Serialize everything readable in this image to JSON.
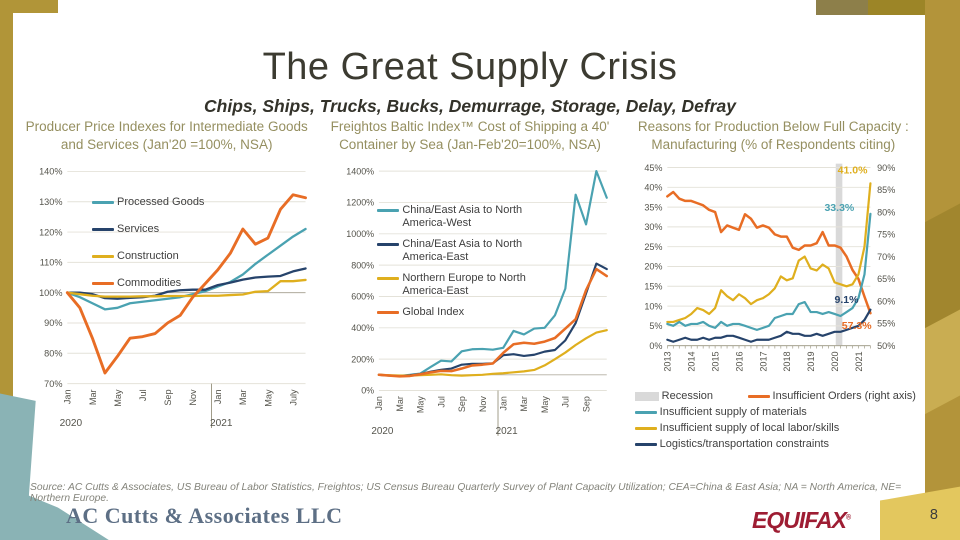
{
  "slide": {
    "title": "The Great Supply Crisis",
    "subtitle": "Chips, Ships, Trucks, Bucks, Demurrage, Storage, Delay, Defray",
    "page_number": "8",
    "source": "Source: AC Cutts & Associates, US Bureau of Labor Statistics, Freightos; US Census Bureau Quarterly Survey of Plant Capacity Utilization; CEA=China & East Asia; NA = North America, NE= Northern Europe.",
    "footer_left_logo": "AC Cutts & Associates LLC",
    "footer_right_logo": "EQUIFAX",
    "footer_right_mark": "®"
  },
  "colors": {
    "teal": "#4aa2b1",
    "navy": "#26436b",
    "gold": "#dfaf1e",
    "orange": "#e86d25",
    "recession": "#d9d9d9",
    "frame_gold": "#b19538",
    "equifax_red": "#9e1d33",
    "chart_title": "#958f60"
  },
  "chart_data": [
    {
      "type": "line",
      "title": "Producer Price Indexes for Intermediate Goods and Services (Jan'20 =100%, NSA)",
      "ylim": [
        70,
        140
      ],
      "ytick_step": 10,
      "baseline": 100,
      "x_ticks": [
        {
          "pos": 0,
          "label": "Jan"
        },
        {
          "pos": 2,
          "label": "Mar"
        },
        {
          "pos": 4,
          "label": "May"
        },
        {
          "pos": 6,
          "label": "Jul"
        },
        {
          "pos": 8,
          "label": "Sep"
        },
        {
          "pos": 10,
          "label": "Nov"
        },
        {
          "pos": 12,
          "label": "Jan"
        },
        {
          "pos": 14,
          "label": "Mar"
        },
        {
          "pos": 16,
          "label": "May"
        },
        {
          "pos": 18,
          "label": "July"
        }
      ],
      "year_labels": [
        {
          "label": "2020",
          "pos": 0
        },
        {
          "label": "2021",
          "pos": 12
        }
      ],
      "year_separator_pos": 11.5,
      "series": [
        {
          "name": "Processed Goods",
          "color": "teal",
          "width": 2.4,
          "values": [
            100,
            98.5,
            96.5,
            94.5,
            95,
            96.5,
            97,
            97.5,
            98,
            98.5,
            99.5,
            100.5,
            102,
            103.5,
            106,
            109.5,
            112.5,
            115.5,
            118.5,
            121
          ]
        },
        {
          "name": "Services",
          "color": "navy",
          "width": 2.4,
          "values": [
            100,
            100,
            99.5,
            98.2,
            98,
            98.3,
            98.5,
            99,
            100.3,
            100.8,
            101,
            101,
            102.5,
            103.3,
            104.3,
            105,
            105.3,
            105.5,
            107,
            108
          ]
        },
        {
          "name": "Construction",
          "color": "gold",
          "width": 2.4,
          "values": [
            100,
            99.5,
            99,
            98.7,
            98.7,
            98.7,
            98.8,
            98.8,
            98.9,
            98.9,
            98.9,
            99,
            99,
            99.2,
            99.4,
            100.3,
            100.5,
            103.8,
            103.8,
            104.2
          ]
        },
        {
          "name": "Commodities",
          "color": "orange",
          "width": 3,
          "values": [
            100,
            95,
            85,
            73.5,
            79,
            85,
            85.5,
            86.5,
            90,
            92.5,
            98.5,
            103,
            107.5,
            113,
            121,
            116,
            118,
            127.5,
            132.3,
            131.3
          ]
        }
      ]
    },
    {
      "type": "line",
      "title": "Freightos Baltic Index™ Cost of Shipping a 40' Container by Sea (Jan-Feb'20=100%, NSA)",
      "ylim": [
        0,
        1400
      ],
      "ytick_step": 200,
      "baseline": 100,
      "x_ticks": [
        {
          "pos": 0,
          "label": "Jan"
        },
        {
          "pos": 2,
          "label": "Mar"
        },
        {
          "pos": 4,
          "label": "May"
        },
        {
          "pos": 6,
          "label": "Jul"
        },
        {
          "pos": 8,
          "label": "Sep"
        },
        {
          "pos": 10,
          "label": "Nov"
        },
        {
          "pos": 12,
          "label": "Jan"
        },
        {
          "pos": 14,
          "label": "Mar"
        },
        {
          "pos": 16,
          "label": "May"
        },
        {
          "pos": 18,
          "label": "Jul"
        },
        {
          "pos": 20,
          "label": "Sep"
        }
      ],
      "year_labels": [
        {
          "label": "2020",
          "pos": 0
        },
        {
          "label": "2021",
          "pos": 12
        }
      ],
      "year_separator_pos": 11.5,
      "series": [
        {
          "name": "China/East Asia to North America-West",
          "color": "teal",
          "width": 2.3,
          "values": [
            100,
            95,
            93,
            100,
            108,
            150,
            190,
            185,
            250,
            263,
            265,
            260,
            272,
            380,
            358,
            395,
            400,
            480,
            650,
            1250,
            1060,
            1400,
            1230
          ]
        },
        {
          "name": "China/East Asia to North America-East",
          "color": "navy",
          "width": 2.3,
          "values": [
            100,
            96,
            93,
            98,
            105,
            120,
            132,
            140,
            165,
            170,
            170,
            173,
            225,
            232,
            220,
            228,
            248,
            258,
            320,
            430,
            620,
            810,
            775
          ]
        },
        {
          "name": "Northern Europe to North America-East",
          "color": "gold",
          "width": 2.3,
          "values": [
            100,
            98,
            95,
            95,
            98,
            100,
            103,
            98,
            95,
            98,
            100,
            106,
            110,
            116,
            122,
            131,
            160,
            200,
            242,
            290,
            333,
            370,
            385
          ]
        },
        {
          "name": "Global Index",
          "color": "orange",
          "width": 2.7,
          "values": [
            100,
            95,
            90,
            93,
            103,
            115,
            125,
            124,
            140,
            160,
            165,
            172,
            240,
            295,
            305,
            298,
            312,
            335,
            395,
            455,
            640,
            775,
            730
          ]
        }
      ]
    },
    {
      "type": "line",
      "title": "Reasons for Production Below Full Capacity : Manufacturing (% of Respondents citing)",
      "ylim": [
        0,
        45
      ],
      "ylim_right": [
        50,
        90
      ],
      "ytick_step": 5,
      "axis_line": true,
      "minor_ticks": true,
      "recession_band": [
        28.2,
        29.3
      ],
      "x_ticks": [
        {
          "pos": 0,
          "label": "2013"
        },
        {
          "pos": 4,
          "label": "2014"
        },
        {
          "pos": 8,
          "label": "2015"
        },
        {
          "pos": 12,
          "label": "2016"
        },
        {
          "pos": 16,
          "label": "2017"
        },
        {
          "pos": 20,
          "label": "2018"
        },
        {
          "pos": 24,
          "label": "2019"
        },
        {
          "pos": 28,
          "label": "2020"
        },
        {
          "pos": 32,
          "label": "2021"
        }
      ],
      "data_labels": [
        {
          "text": "41.0%",
          "color": "gold",
          "x": 33.5,
          "y": 43.5,
          "anchor": "end"
        },
        {
          "text": "33.3%",
          "color": "teal",
          "x": 31.3,
          "y": 34,
          "anchor": "end"
        },
        {
          "text": "9.1%",
          "color": "navy",
          "x": 32,
          "y": 10.8,
          "anchor": "end"
        },
        {
          "text": "57.3%",
          "color": "orange",
          "x": 34.2,
          "y": 4.2,
          "anchor": "end"
        }
      ],
      "legend": [
        {
          "label": "Recession",
          "color": "recession",
          "shape": "patch"
        },
        {
          "label": "Insufficient Orders (right axis)",
          "color": "orange",
          "shape": "line"
        },
        {
          "label": "Insufficient supply of materials",
          "color": "teal",
          "shape": "line"
        },
        {
          "label": "Insufficient supply of local labor/skills",
          "color": "gold",
          "shape": "line"
        },
        {
          "label": "Logistics/transportation constraints",
          "color": "navy",
          "shape": "line"
        }
      ],
      "series": [
        {
          "name": "Insufficient Orders (right axis)",
          "color": "orange",
          "width": 2.6,
          "axis": "right",
          "values": [
            83.5,
            84.5,
            83,
            82.5,
            82.5,
            82,
            81.5,
            80.5,
            80,
            75.5,
            77,
            76.5,
            76,
            79.5,
            78.5,
            76.5,
            77,
            76.5,
            75,
            74.5,
            74.5,
            72,
            71.5,
            72.5,
            72.5,
            73,
            75.5,
            72.5,
            72.5,
            72,
            70,
            67,
            65,
            61,
            57.3
          ]
        },
        {
          "name": "Insufficient supply of local labor/skills",
          "color": "gold",
          "width": 2.3,
          "values": [
            6,
            6,
            6.5,
            7,
            8,
            9.5,
            9,
            8,
            9.5,
            14,
            12.5,
            11.5,
            13,
            12,
            10.5,
            11.5,
            12,
            13,
            14.5,
            17.5,
            16.5,
            17,
            21.5,
            22.5,
            19.5,
            19,
            20.5,
            19.5,
            16,
            15.5,
            15,
            15.5,
            18,
            25,
            41
          ]
        },
        {
          "name": "Insufficient supply of materials",
          "color": "teal",
          "width": 2.3,
          "values": [
            5.5,
            5,
            6,
            5,
            5.5,
            5.5,
            6,
            5,
            4.5,
            6,
            5,
            5.5,
            5.5,
            5,
            4.5,
            4,
            4.5,
            5,
            7,
            7.5,
            8,
            8,
            10.5,
            11,
            8.5,
            8.5,
            8,
            8.5,
            8,
            7.5,
            8.5,
            9.5,
            12,
            18,
            33.3
          ]
        },
        {
          "name": "Logistics/transportation constraints",
          "color": "navy",
          "width": 2.3,
          "values": [
            1.5,
            1,
            1.5,
            2,
            1.5,
            1.5,
            2,
            1.5,
            2,
            2,
            2.5,
            2.5,
            2,
            1.5,
            1,
            1.5,
            1.5,
            1.5,
            2,
            2.5,
            3.5,
            3,
            3,
            2.5,
            2.5,
            3,
            2.5,
            3,
            3.5,
            3.5,
            4,
            4.5,
            5,
            6.5,
            9.1
          ]
        }
      ]
    }
  ]
}
